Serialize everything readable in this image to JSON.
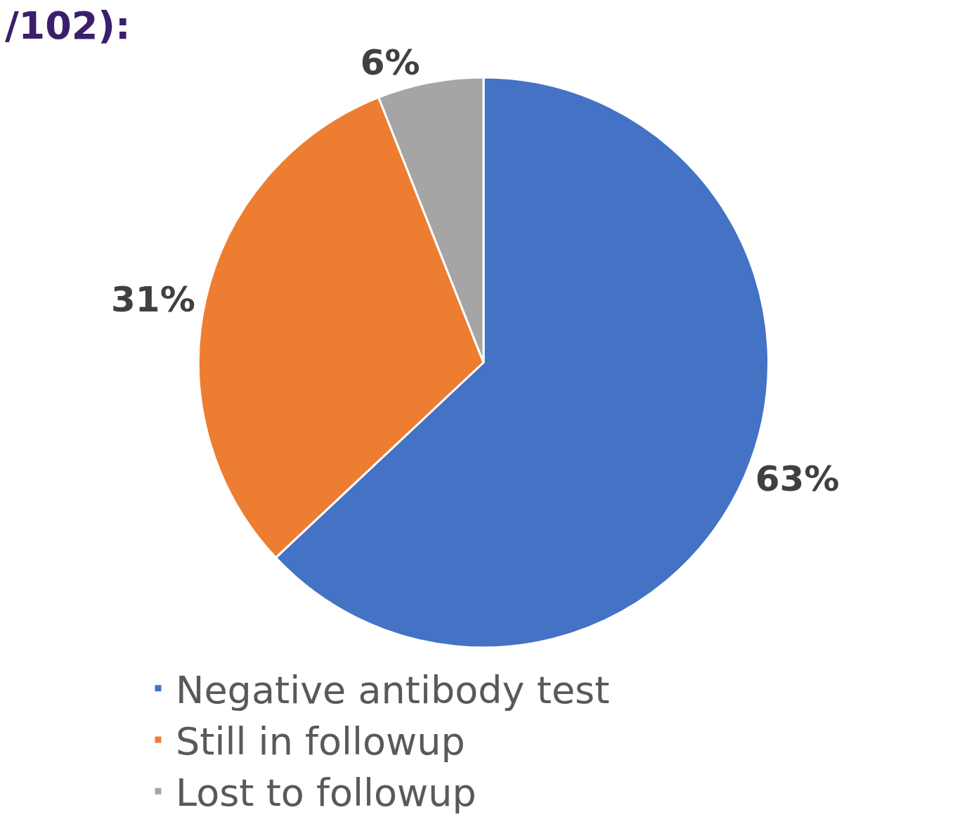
{
  "chart_data": {
    "type": "pie",
    "title": "/102):",
    "categories": [
      "Negative antibody test",
      "Still in followup",
      "Lost to followup"
    ],
    "values": [
      63,
      31,
      6
    ],
    "colors": [
      "#4472c4",
      "#ed7d31",
      "#a5a5a5"
    ],
    "value_labels": [
      "63%",
      "31%",
      "6%"
    ],
    "legend": "bottom"
  }
}
